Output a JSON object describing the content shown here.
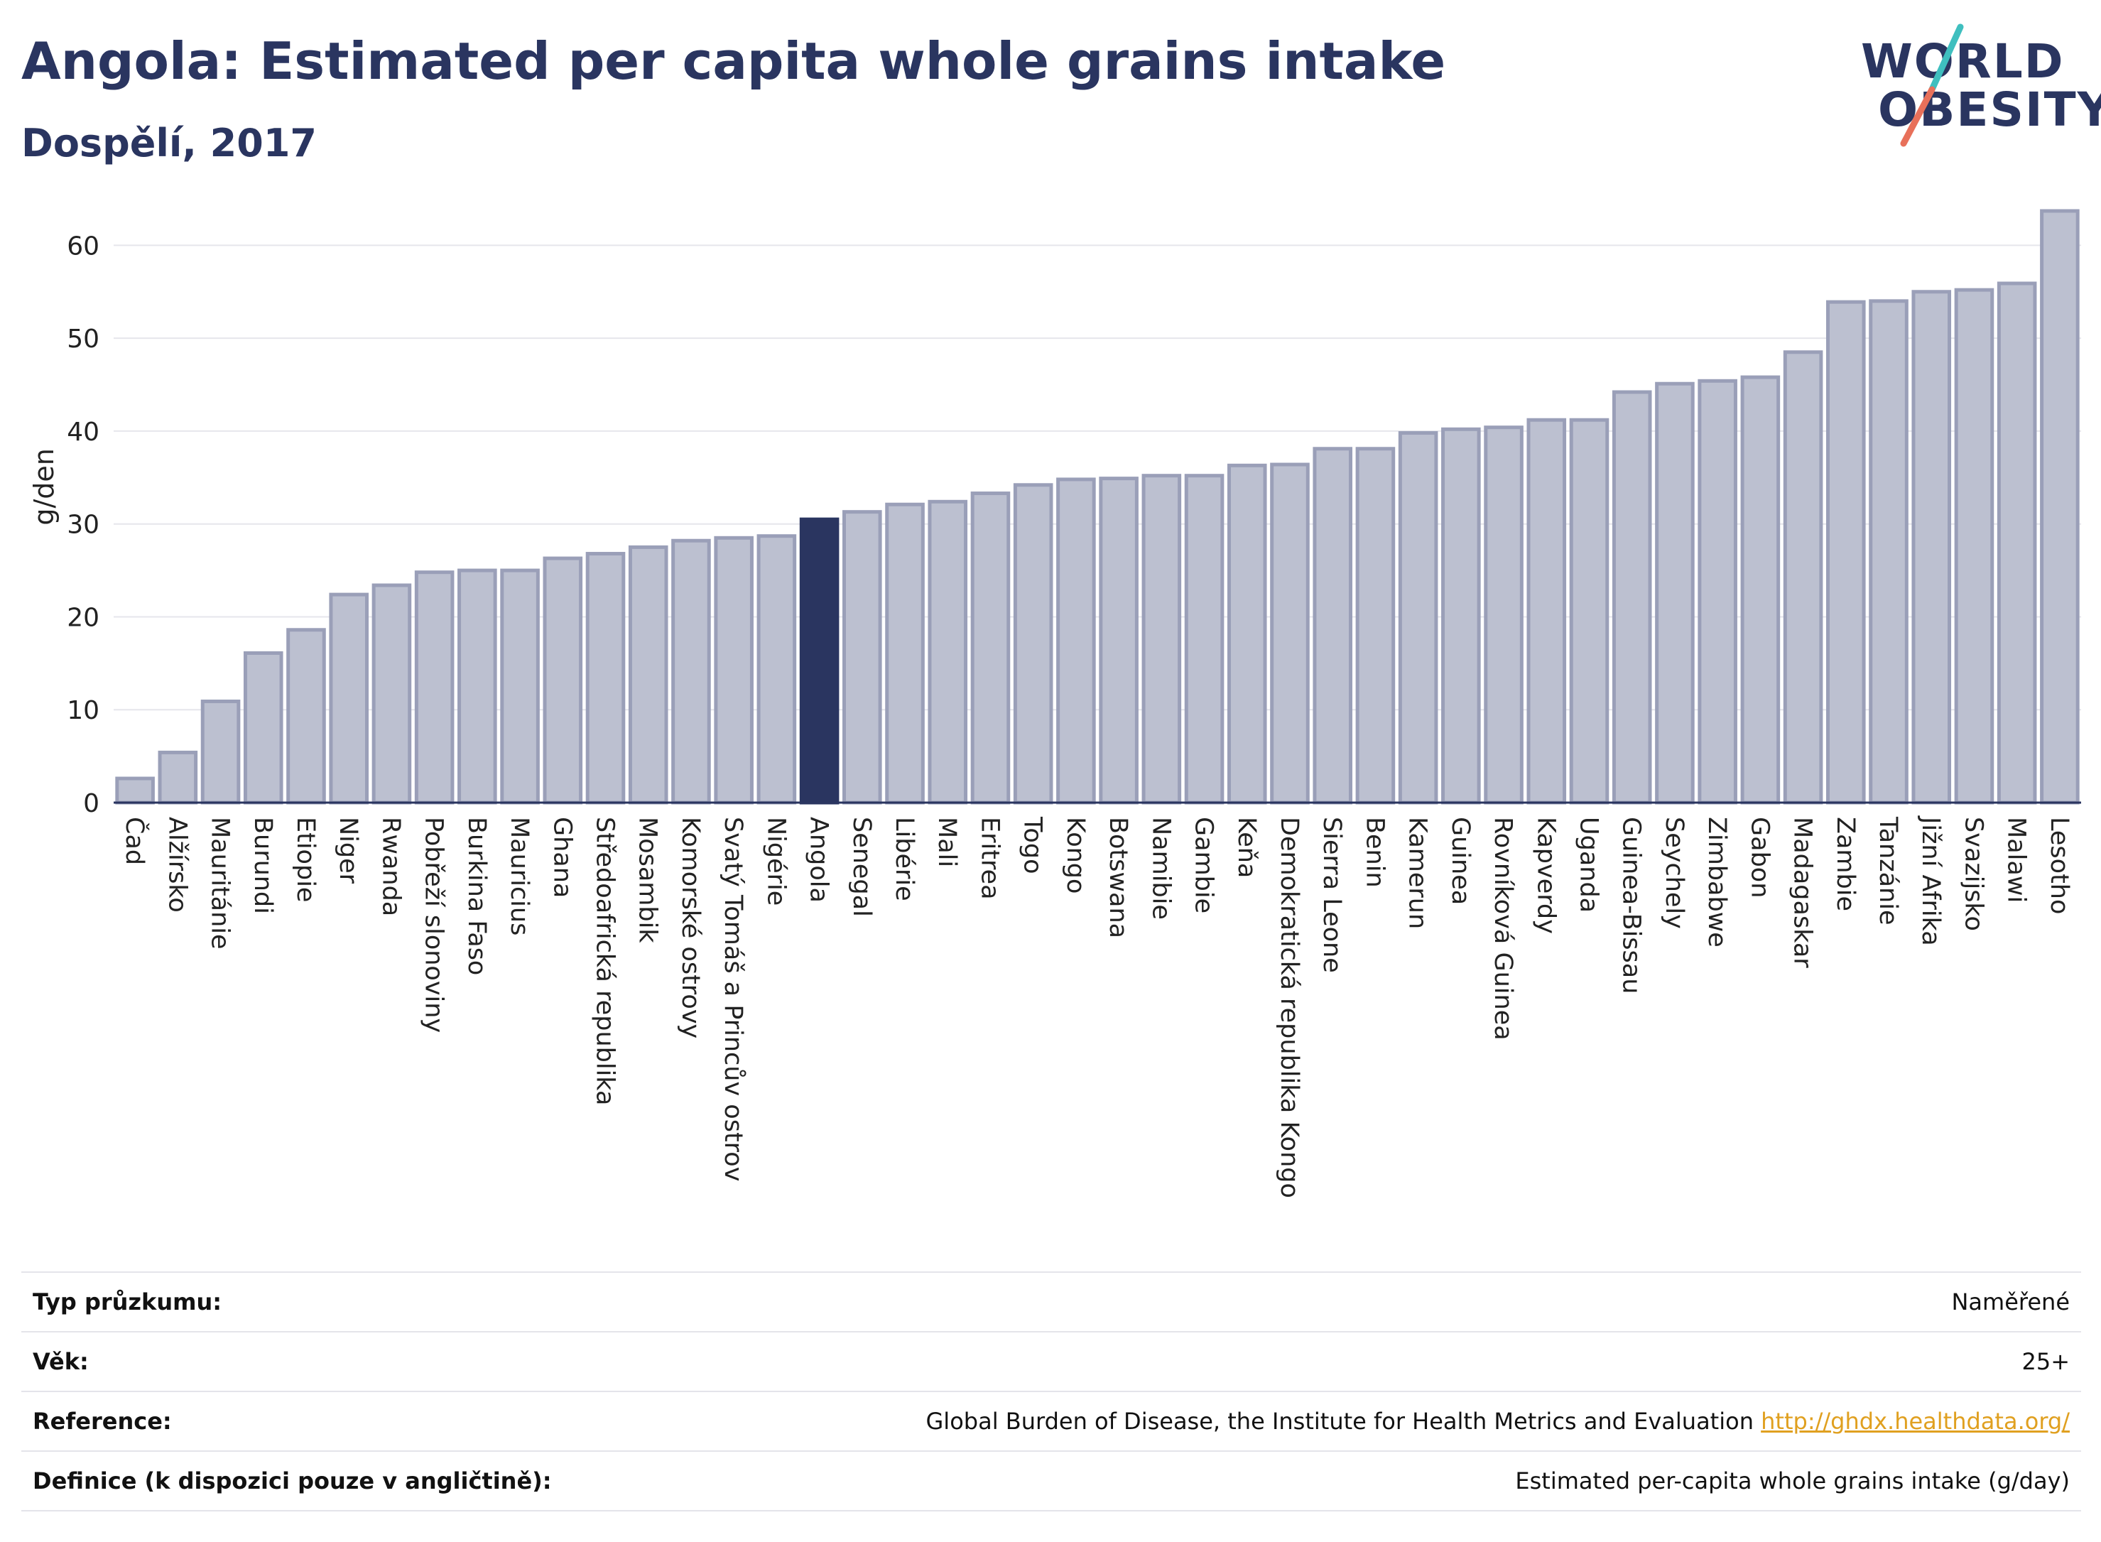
{
  "header": {
    "title": "Angola: Estimated per capita whole grains intake",
    "subtitle": "Dospělí, 2017"
  },
  "logo": {
    "line1": "WORLD",
    "line2": "OBESITY",
    "text_color": "#2a3560",
    "accent_colors": [
      "#3fbfbf",
      "#e8705a"
    ]
  },
  "colors": {
    "bar_default": "#bcc0d0",
    "bar_border": "#9a9fb8",
    "bar_highlight": "#2a3560",
    "gridline": "#e6e6ec"
  },
  "chart_data": {
    "type": "bar",
    "title": "",
    "xlabel": "",
    "ylabel": "g/den",
    "ylim": [
      0,
      65
    ],
    "yticks": [
      0,
      10,
      20,
      30,
      40,
      50,
      60
    ],
    "grid": true,
    "highlight": "Angola",
    "categories": [
      "Čad",
      "Alžírsko",
      "Mauritánie",
      "Burundi",
      "Etiopie",
      "Niger",
      "Rwanda",
      "Pobřeží slonoviny",
      "Burkina Faso",
      "Mauricius",
      "Ghana",
      "Středoafrická republika",
      "Mosambik",
      "Komorské ostrovy",
      "Svatý Tomáš a Princův ostrov",
      "Nigérie",
      "Angola",
      "Senegal",
      "Libérie",
      "Mali",
      "Eritrea",
      "Togo",
      "Kongo",
      "Botswana",
      "Namibie",
      "Gambie",
      "Keňa",
      "Demokratická republika Kongo",
      "Sierra Leone",
      "Benin",
      "Kamerun",
      "Guinea",
      "Rovníková Guinea",
      "Kapverdy",
      "Uganda",
      "Guinea-Bissau",
      "Seychely",
      "Zimbabwe",
      "Gabon",
      "Madagaskar",
      "Zambie",
      "Tanzánie",
      "Jižní Afrika",
      "Svazijsko",
      "Malawi",
      "Lesotho"
    ],
    "values": [
      2.6,
      5.4,
      10.9,
      16.1,
      18.6,
      22.4,
      23.4,
      24.8,
      25.0,
      25.0,
      26.3,
      26.8,
      27.5,
      28.2,
      28.5,
      28.7,
      30.5,
      31.3,
      32.1,
      32.4,
      33.3,
      34.2,
      34.8,
      34.9,
      35.2,
      35.2,
      36.3,
      36.4,
      38.1,
      38.1,
      39.8,
      40.2,
      40.4,
      41.2,
      41.2,
      44.2,
      45.1,
      45.4,
      45.8,
      48.5,
      53.9,
      54.0,
      55.0,
      55.2,
      55.9,
      63.7
    ]
  },
  "info_table": [
    {
      "label": "Typ průzkumu:",
      "value": "Naměřené"
    },
    {
      "label": "Věk:",
      "value": "25+"
    },
    {
      "label": "Reference:",
      "value": "Global Burden of Disease, the Institute for Health Metrics and Evaluation",
      "link": "http://ghdx.healthdata.org/"
    },
    {
      "label": "Definice (k dispozici pouze v angličtině):",
      "value": "Estimated per-capita whole grains intake (g/day)"
    }
  ]
}
